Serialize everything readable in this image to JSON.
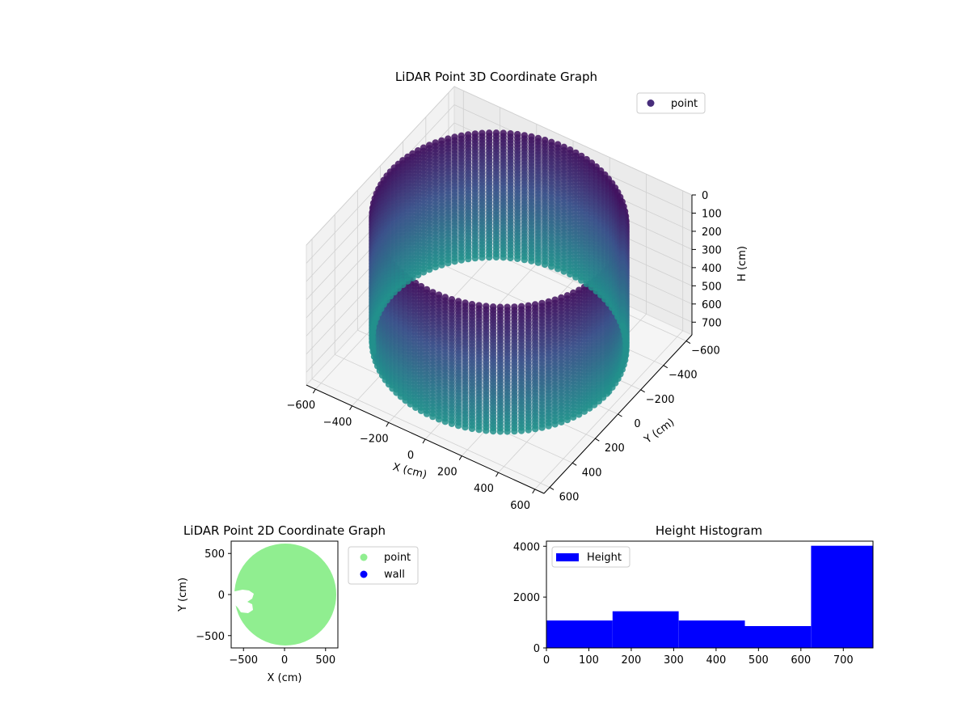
{
  "chart_data": [
    {
      "type": "scatter3d",
      "title": "LiDAR Point 3D Coordinate Graph",
      "xlabel": "X (cm)",
      "ylabel": "Y (cm)",
      "zlabel": "H (cm)",
      "xticks": [
        "−600",
        "−400",
        "−200",
        "0",
        "200",
        "400",
        "600"
      ],
      "yticks": [
        "−600",
        "−400",
        "−200",
        "0",
        "200",
        "400",
        "600"
      ],
      "zticks": [
        "0",
        "100",
        "200",
        "300",
        "400",
        "500",
        "600",
        "700"
      ],
      "xlim": [
        -650,
        650
      ],
      "ylim": [
        -650,
        650
      ],
      "zlim": [
        0,
        770
      ],
      "z_inverted": true,
      "colormap": "viridis",
      "grid": true,
      "legend": {
        "entries": [
          {
            "label": "point",
            "color": "#472d7b"
          }
        ],
        "placement": "upper-right"
      },
      "cylinder": {
        "radius": 590,
        "height_min": 0,
        "height_max": 700
      }
    },
    {
      "type": "scatter",
      "title": "LiDAR Point 2D Coordinate Graph",
      "xlabel": "X (cm)",
      "ylabel": "Y (cm)",
      "xticks": [
        "−500",
        "0",
        "500"
      ],
      "yticks": [
        "500",
        "0",
        "−500"
      ],
      "xlim": [
        -650,
        650
      ],
      "ylim": [
        -650,
        650
      ],
      "point_color": "#90ee90",
      "wall_color": "#0000ff",
      "legend": {
        "placement": "outside-right",
        "entries": [
          {
            "label": "point",
            "color": "#90ee90"
          },
          {
            "label": "wall",
            "color": "#0000ff"
          }
        ]
      },
      "disc": {
        "center": [
          0,
          0
        ],
        "radius": 620
      }
    },
    {
      "type": "bar",
      "title": "Height Histogram",
      "xticks": [
        "0",
        "100",
        "200",
        "300",
        "400",
        "500",
        "600",
        "700"
      ],
      "yticks": [
        "0",
        "2000",
        "4000"
      ],
      "xlim": [
        0,
        770
      ],
      "ylim": [
        0,
        4200
      ],
      "bar_color": "#0000ff",
      "legend": {
        "placement": "upper-left",
        "entries": [
          {
            "label": "Height",
            "color": "#0000ff"
          }
        ]
      },
      "bins": [
        {
          "x0": 0,
          "x1": 156,
          "count": 1080
        },
        {
          "x0": 156,
          "x1": 312,
          "count": 1440
        },
        {
          "x0": 312,
          "x1": 468,
          "count": 1080
        },
        {
          "x0": 468,
          "x1": 624,
          "count": 860
        },
        {
          "x0": 624,
          "x1": 770,
          "count": 4020
        }
      ]
    }
  ]
}
